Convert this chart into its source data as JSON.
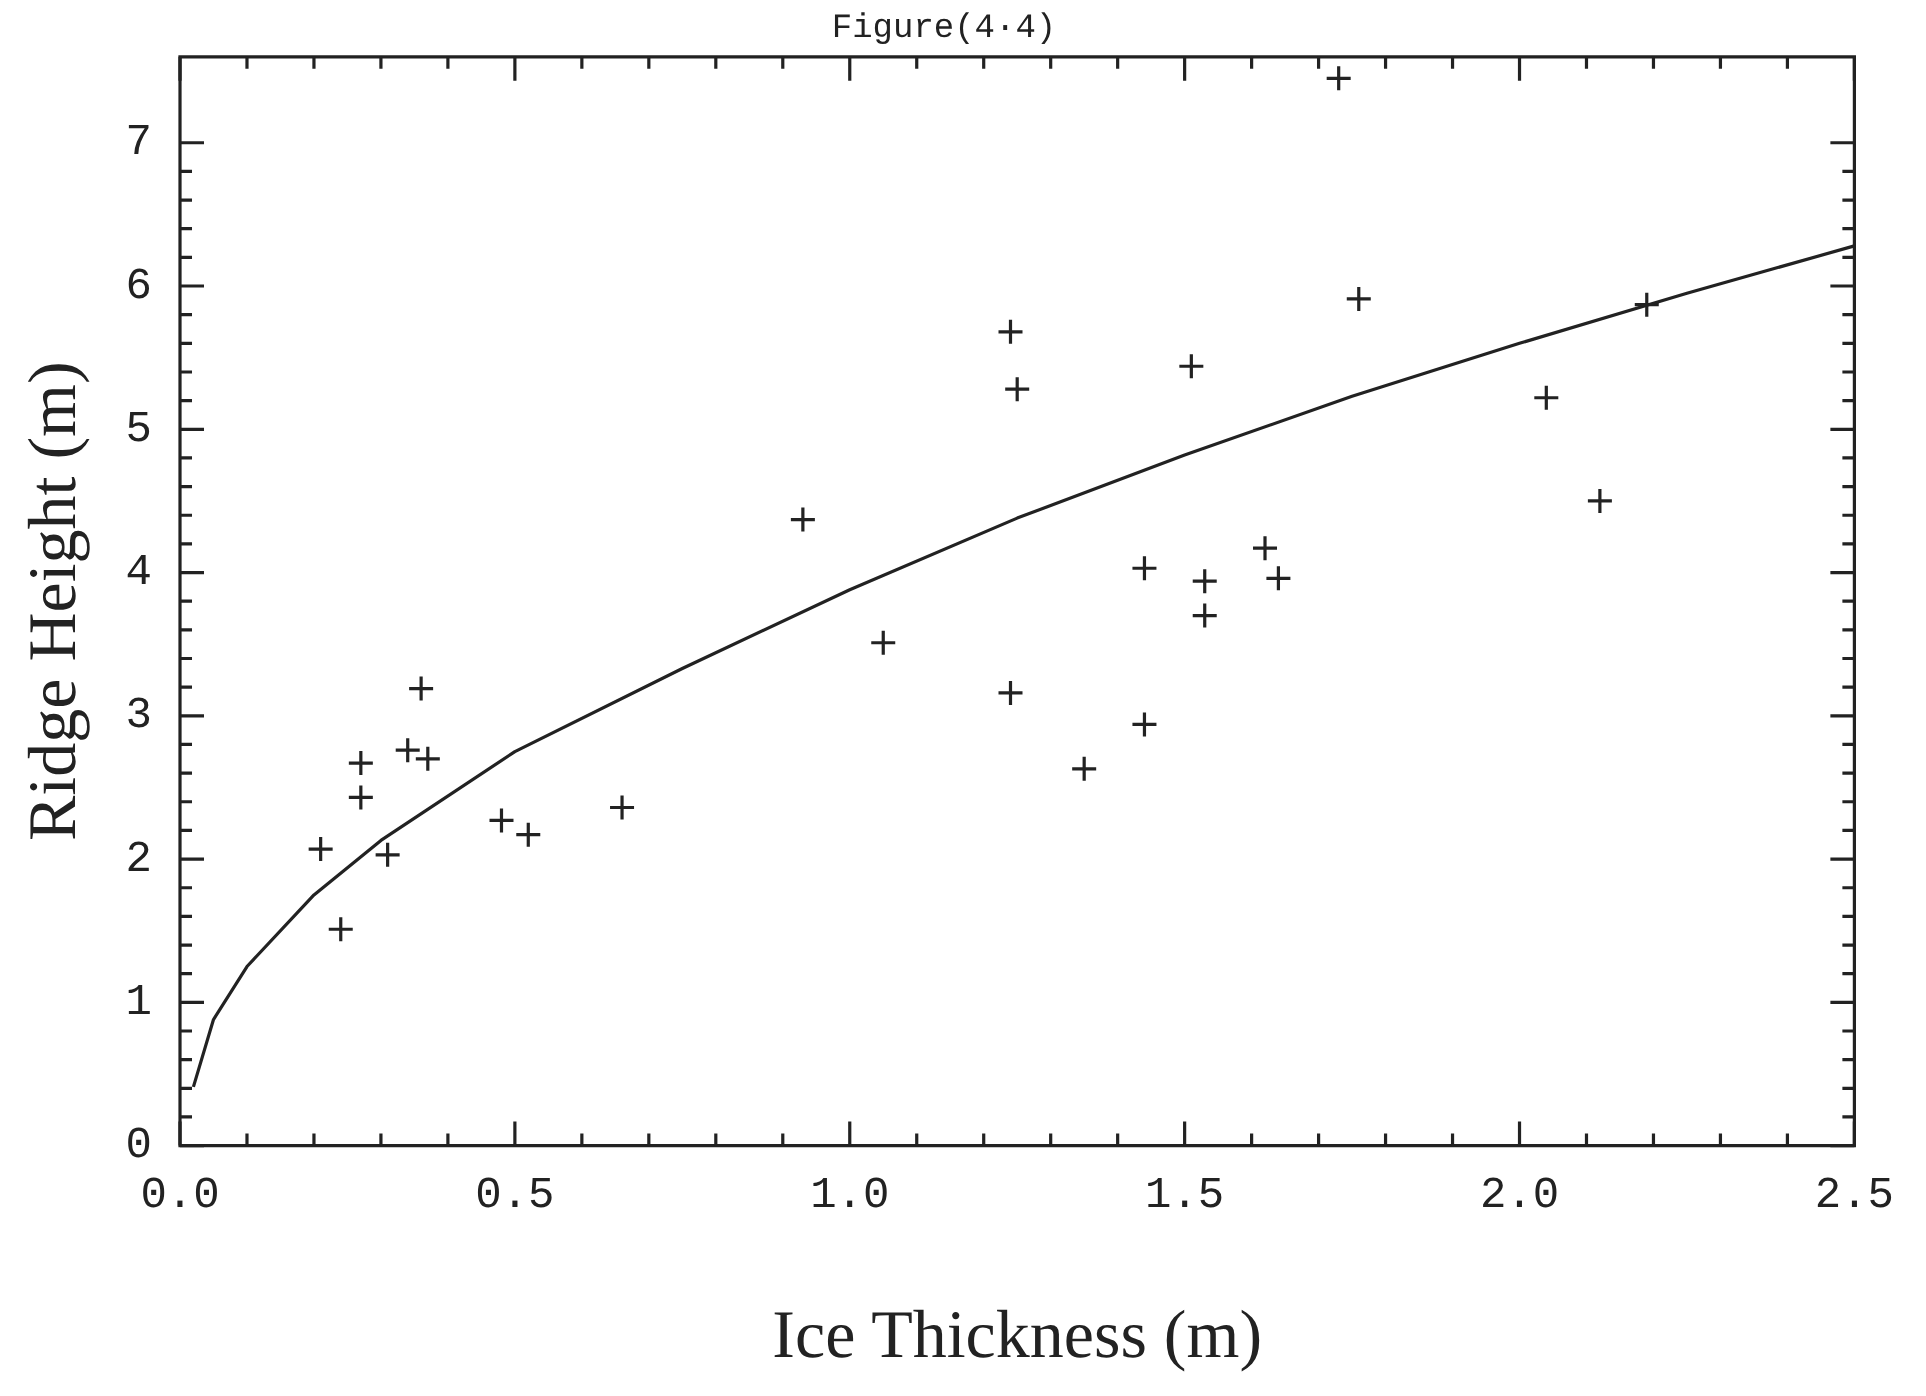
{
  "chart_data": {
    "type": "scatter",
    "title": "Figure(4·4)",
    "xlabel": "Ice Thickness (m)",
    "ylabel": "Ridge Height (m)",
    "xlim": [
      0,
      2.5
    ],
    "ylim": [
      0,
      7.6
    ],
    "xticks": [
      {
        "value": 0,
        "label": "0.0"
      },
      {
        "value": 0.1,
        "label": null
      },
      {
        "value": 0.2,
        "label": null
      },
      {
        "value": 0.3,
        "label": null
      },
      {
        "value": 0.4,
        "label": null
      },
      {
        "value": 0.5,
        "label": "0.5"
      },
      {
        "value": 0.6,
        "label": null
      },
      {
        "value": 0.7,
        "label": null
      },
      {
        "value": 0.8,
        "label": null
      },
      {
        "value": 0.9,
        "label": null
      },
      {
        "value": 1,
        "label": "1.0"
      },
      {
        "value": 1.1,
        "label": null
      },
      {
        "value": 1.2,
        "label": null
      },
      {
        "value": 1.3,
        "label": null
      },
      {
        "value": 1.4,
        "label": null
      },
      {
        "value": 1.5,
        "label": "1.5"
      },
      {
        "value": 1.6,
        "label": null
      },
      {
        "value": 1.7,
        "label": null
      },
      {
        "value": 1.8,
        "label": null
      },
      {
        "value": 1.9,
        "label": null
      },
      {
        "value": 2,
        "label": "2.0"
      },
      {
        "value": 2.1,
        "label": null
      },
      {
        "value": 2.2,
        "label": null
      },
      {
        "value": 2.3,
        "label": null
      },
      {
        "value": 2.4,
        "label": null
      },
      {
        "value": 2.5,
        "label": "2.5"
      }
    ],
    "yticks": [
      0,
      {
        "value": 0.2,
        "label": null
      },
      {
        "value": 0.4,
        "label": null
      },
      {
        "value": 0.6,
        "label": null
      },
      {
        "value": 0.8,
        "label": null
      },
      1,
      {
        "value": 1.2,
        "label": null
      },
      {
        "value": 1.4,
        "label": null
      },
      {
        "value": 1.6,
        "label": null
      },
      {
        "value": 1.8,
        "label": null
      },
      2,
      {
        "value": 2.2,
        "label": null
      },
      {
        "value": 2.4,
        "label": null
      },
      {
        "value": 2.6,
        "label": null
      },
      {
        "value": 2.8,
        "label": null
      },
      3,
      {
        "value": 3.2,
        "label": null
      },
      {
        "value": 3.4,
        "label": null
      },
      {
        "value": 3.6,
        "label": null
      },
      {
        "value": 3.8,
        "label": null
      },
      4,
      {
        "value": 4.2,
        "label": null
      },
      {
        "value": 4.4,
        "label": null
      },
      {
        "value": 4.6,
        "label": null
      },
      {
        "value": 4.8,
        "label": null
      },
      5,
      {
        "value": 5.2,
        "label": null
      },
      {
        "value": 5.4,
        "label": null
      },
      {
        "value": 5.6,
        "label": null
      },
      {
        "value": 5.8,
        "label": null
      },
      6,
      {
        "value": 6.2,
        "label": null
      },
      {
        "value": 6.4,
        "label": null
      },
      {
        "value": 6.6,
        "label": null
      },
      {
        "value": 6.8,
        "label": null
      },
      7
    ],
    "grid": false,
    "legend": false,
    "series": [
      {
        "type": "scatter",
        "marker": "cross",
        "color": "#222222",
        "x": [
          0.21,
          0.24,
          0.27,
          0.27,
          0.31,
          0.34,
          0.36,
          0.37,
          0.48,
          0.52,
          0.66,
          0.93,
          1.05,
          1.24,
          1.25,
          1.24,
          1.35,
          1.44,
          1.44,
          1.51,
          1.53,
          1.53,
          1.62,
          1.64,
          1.73,
          1.76,
          2.04,
          2.12,
          2.19
        ],
        "values": [
          2.07,
          1.51,
          2.67,
          2.43,
          2.03,
          2.76,
          3.19,
          2.7,
          2.27,
          2.17,
          2.36,
          4.37,
          3.51,
          5.68,
          5.28,
          3.16,
          2.63,
          4.03,
          2.94,
          5.44,
          3.94,
          3.7,
          4.17,
          3.96,
          7.45,
          5.91,
          5.22,
          4.5,
          5.87
        ]
      },
      {
        "type": "line",
        "marker": "none",
        "color": "#222222",
        "x": [
          0.02,
          0.05,
          0.1,
          0.2,
          0.3,
          0.5,
          0.75,
          1.0,
          1.25,
          1.5,
          1.75,
          2.0,
          2.25,
          2.5
        ],
        "values": [
          0.41,
          0.88,
          1.25,
          1.75,
          2.13,
          2.75,
          3.33,
          3.88,
          4.38,
          4.82,
          5.23,
          5.6,
          5.95,
          6.28
        ]
      }
    ]
  }
}
